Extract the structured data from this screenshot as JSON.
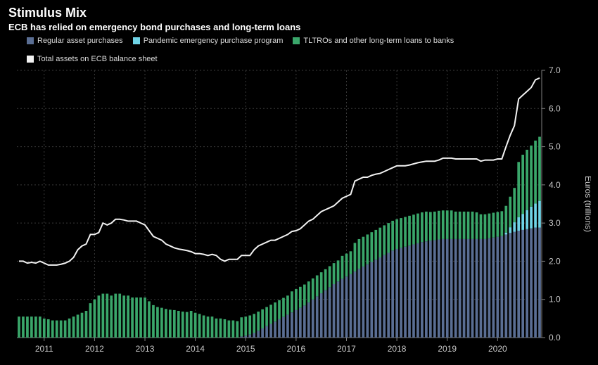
{
  "title": "Stimulus Mix",
  "subtitle": "ECB has relied on emergency bond purchases and long-term loans",
  "legend": {
    "s1": "Regular asset purchases",
    "s2": "Pandemic emergency purchase program",
    "s3": "TLTROs and other long-term loans to banks",
    "s4": "Total assets on ECB balance sheet"
  },
  "y_axis_label": "Euros (trillions)",
  "chart": {
    "type": "stacked_bar_with_line",
    "background_color": "#000000",
    "grid_color": "#3a3a3a",
    "axis_color": "#808080",
    "tick_color": "#c8c8c8",
    "ylim": [
      0,
      7.0
    ],
    "yticks": [
      0.0,
      1.0,
      2.0,
      3.0,
      4.0,
      5.0,
      6.0,
      7.0
    ],
    "xticks": [
      "2011",
      "2012",
      "2013",
      "2014",
      "2015",
      "2016",
      "2017",
      "2018",
      "2019",
      "2020"
    ],
    "series_colors": {
      "regular": "#5a6e93",
      "pandemic": "#6fd3e6",
      "tltro": "#3aa66a",
      "total": "#f2f2f2"
    },
    "bar_width_ratio": 0.62,
    "title_fontsize": 18,
    "subtitle_fontsize": 13,
    "legend_fontsize": 11,
    "tick_fontsize": 12,
    "data": [
      {
        "t": "2010-07",
        "regular": 0.0,
        "pandemic": 0.0,
        "tltro": 0.55,
        "total": 2.0
      },
      {
        "t": "2010-08",
        "regular": 0.0,
        "pandemic": 0.0,
        "tltro": 0.55,
        "total": 2.0
      },
      {
        "t": "2010-09",
        "regular": 0.0,
        "pandemic": 0.0,
        "tltro": 0.55,
        "total": 1.95
      },
      {
        "t": "2010-10",
        "regular": 0.0,
        "pandemic": 0.0,
        "tltro": 0.55,
        "total": 1.97
      },
      {
        "t": "2010-11",
        "regular": 0.0,
        "pandemic": 0.0,
        "tltro": 0.55,
        "total": 1.95
      },
      {
        "t": "2010-12",
        "regular": 0.0,
        "pandemic": 0.0,
        "tltro": 0.55,
        "total": 2.0
      },
      {
        "t": "2011-01",
        "regular": 0.0,
        "pandemic": 0.0,
        "tltro": 0.5,
        "total": 1.95
      },
      {
        "t": "2011-02",
        "regular": 0.0,
        "pandemic": 0.0,
        "tltro": 0.48,
        "total": 1.9
      },
      {
        "t": "2011-03",
        "regular": 0.0,
        "pandemic": 0.0,
        "tltro": 0.45,
        "total": 1.9
      },
      {
        "t": "2011-04",
        "regular": 0.0,
        "pandemic": 0.0,
        "tltro": 0.45,
        "total": 1.9
      },
      {
        "t": "2011-05",
        "regular": 0.0,
        "pandemic": 0.0,
        "tltro": 0.45,
        "total": 1.92
      },
      {
        "t": "2011-06",
        "regular": 0.0,
        "pandemic": 0.0,
        "tltro": 0.45,
        "total": 1.95
      },
      {
        "t": "2011-07",
        "regular": 0.0,
        "pandemic": 0.0,
        "tltro": 0.5,
        "total": 2.0
      },
      {
        "t": "2011-08",
        "regular": 0.0,
        "pandemic": 0.0,
        "tltro": 0.55,
        "total": 2.1
      },
      {
        "t": "2011-09",
        "regular": 0.0,
        "pandemic": 0.0,
        "tltro": 0.6,
        "total": 2.3
      },
      {
        "t": "2011-10",
        "regular": 0.0,
        "pandemic": 0.0,
        "tltro": 0.65,
        "total": 2.4
      },
      {
        "t": "2011-11",
        "regular": 0.0,
        "pandemic": 0.0,
        "tltro": 0.7,
        "total": 2.45
      },
      {
        "t": "2011-12",
        "regular": 0.0,
        "pandemic": 0.0,
        "tltro": 0.9,
        "total": 2.7
      },
      {
        "t": "2012-01",
        "regular": 0.0,
        "pandemic": 0.0,
        "tltro": 1.0,
        "total": 2.7
      },
      {
        "t": "2012-02",
        "regular": 0.0,
        "pandemic": 0.0,
        "tltro": 1.1,
        "total": 2.75
      },
      {
        "t": "2012-03",
        "regular": 0.0,
        "pandemic": 0.0,
        "tltro": 1.15,
        "total": 3.0
      },
      {
        "t": "2012-04",
        "regular": 0.0,
        "pandemic": 0.0,
        "tltro": 1.15,
        "total": 2.95
      },
      {
        "t": "2012-05",
        "regular": 0.0,
        "pandemic": 0.0,
        "tltro": 1.1,
        "total": 3.0
      },
      {
        "t": "2012-06",
        "regular": 0.0,
        "pandemic": 0.0,
        "tltro": 1.15,
        "total": 3.1
      },
      {
        "t": "2012-07",
        "regular": 0.0,
        "pandemic": 0.0,
        "tltro": 1.15,
        "total": 3.1
      },
      {
        "t": "2012-08",
        "regular": 0.0,
        "pandemic": 0.0,
        "tltro": 1.1,
        "total": 3.08
      },
      {
        "t": "2012-09",
        "regular": 0.0,
        "pandemic": 0.0,
        "tltro": 1.1,
        "total": 3.05
      },
      {
        "t": "2012-10",
        "regular": 0.0,
        "pandemic": 0.0,
        "tltro": 1.05,
        "total": 3.05
      },
      {
        "t": "2012-11",
        "regular": 0.0,
        "pandemic": 0.0,
        "tltro": 1.05,
        "total": 3.05
      },
      {
        "t": "2012-12",
        "regular": 0.0,
        "pandemic": 0.0,
        "tltro": 1.05,
        "total": 3.0
      },
      {
        "t": "2013-01",
        "regular": 0.0,
        "pandemic": 0.0,
        "tltro": 1.05,
        "total": 2.95
      },
      {
        "t": "2013-02",
        "regular": 0.0,
        "pandemic": 0.0,
        "tltro": 0.95,
        "total": 2.8
      },
      {
        "t": "2013-03",
        "regular": 0.0,
        "pandemic": 0.0,
        "tltro": 0.85,
        "total": 2.65
      },
      {
        "t": "2013-04",
        "regular": 0.0,
        "pandemic": 0.0,
        "tltro": 0.8,
        "total": 2.6
      },
      {
        "t": "2013-05",
        "regular": 0.0,
        "pandemic": 0.0,
        "tltro": 0.78,
        "total": 2.55
      },
      {
        "t": "2013-06",
        "regular": 0.0,
        "pandemic": 0.0,
        "tltro": 0.75,
        "total": 2.45
      },
      {
        "t": "2013-07",
        "regular": 0.0,
        "pandemic": 0.0,
        "tltro": 0.73,
        "total": 2.4
      },
      {
        "t": "2013-08",
        "regular": 0.0,
        "pandemic": 0.0,
        "tltro": 0.72,
        "total": 2.35
      },
      {
        "t": "2013-09",
        "regular": 0.0,
        "pandemic": 0.0,
        "tltro": 0.7,
        "total": 2.32
      },
      {
        "t": "2013-10",
        "regular": 0.0,
        "pandemic": 0.0,
        "tltro": 0.68,
        "total": 2.3
      },
      {
        "t": "2013-11",
        "regular": 0.0,
        "pandemic": 0.0,
        "tltro": 0.67,
        "total": 2.28
      },
      {
        "t": "2013-12",
        "regular": 0.0,
        "pandemic": 0.0,
        "tltro": 0.7,
        "total": 2.25
      },
      {
        "t": "2014-01",
        "regular": 0.0,
        "pandemic": 0.0,
        "tltro": 0.65,
        "total": 2.2
      },
      {
        "t": "2014-02",
        "regular": 0.0,
        "pandemic": 0.0,
        "tltro": 0.62,
        "total": 2.2
      },
      {
        "t": "2014-03",
        "regular": 0.0,
        "pandemic": 0.0,
        "tltro": 0.58,
        "total": 2.18
      },
      {
        "t": "2014-04",
        "regular": 0.0,
        "pandemic": 0.0,
        "tltro": 0.55,
        "total": 2.15
      },
      {
        "t": "2014-05",
        "regular": 0.0,
        "pandemic": 0.0,
        "tltro": 0.55,
        "total": 2.18
      },
      {
        "t": "2014-06",
        "regular": 0.0,
        "pandemic": 0.0,
        "tltro": 0.5,
        "total": 2.15
      },
      {
        "t": "2014-07",
        "regular": 0.0,
        "pandemic": 0.0,
        "tltro": 0.5,
        "total": 2.05
      },
      {
        "t": "2014-08",
        "regular": 0.0,
        "pandemic": 0.0,
        "tltro": 0.48,
        "total": 2.0
      },
      {
        "t": "2014-09",
        "regular": 0.0,
        "pandemic": 0.0,
        "tltro": 0.45,
        "total": 2.05
      },
      {
        "t": "2014-10",
        "regular": 0.0,
        "pandemic": 0.0,
        "tltro": 0.45,
        "total": 2.05
      },
      {
        "t": "2014-11",
        "regular": 0.0,
        "pandemic": 0.0,
        "tltro": 0.43,
        "total": 2.05
      },
      {
        "t": "2014-12",
        "regular": 0.03,
        "pandemic": 0.0,
        "tltro": 0.5,
        "total": 2.15
      },
      {
        "t": "2015-01",
        "regular": 0.05,
        "pandemic": 0.0,
        "tltro": 0.5,
        "total": 2.15
      },
      {
        "t": "2015-02",
        "regular": 0.08,
        "pandemic": 0.0,
        "tltro": 0.5,
        "total": 2.15
      },
      {
        "t": "2015-03",
        "regular": 0.12,
        "pandemic": 0.0,
        "tltro": 0.5,
        "total": 2.3
      },
      {
        "t": "2015-04",
        "regular": 0.18,
        "pandemic": 0.0,
        "tltro": 0.5,
        "total": 2.4
      },
      {
        "t": "2015-05",
        "regular": 0.24,
        "pandemic": 0.0,
        "tltro": 0.5,
        "total": 2.45
      },
      {
        "t": "2015-06",
        "regular": 0.3,
        "pandemic": 0.0,
        "tltro": 0.5,
        "total": 2.5
      },
      {
        "t": "2015-07",
        "regular": 0.36,
        "pandemic": 0.0,
        "tltro": 0.5,
        "total": 2.55
      },
      {
        "t": "2015-08",
        "regular": 0.42,
        "pandemic": 0.0,
        "tltro": 0.5,
        "total": 2.55
      },
      {
        "t": "2015-09",
        "regular": 0.48,
        "pandemic": 0.0,
        "tltro": 0.5,
        "total": 2.6
      },
      {
        "t": "2015-10",
        "regular": 0.54,
        "pandemic": 0.0,
        "tltro": 0.5,
        "total": 2.65
      },
      {
        "t": "2015-11",
        "regular": 0.6,
        "pandemic": 0.0,
        "tltro": 0.5,
        "total": 2.7
      },
      {
        "t": "2015-12",
        "regular": 0.66,
        "pandemic": 0.0,
        "tltro": 0.55,
        "total": 2.78
      },
      {
        "t": "2016-01",
        "regular": 0.72,
        "pandemic": 0.0,
        "tltro": 0.55,
        "total": 2.8
      },
      {
        "t": "2016-02",
        "regular": 0.78,
        "pandemic": 0.0,
        "tltro": 0.55,
        "total": 2.85
      },
      {
        "t": "2016-03",
        "regular": 0.84,
        "pandemic": 0.0,
        "tltro": 0.55,
        "total": 2.95
      },
      {
        "t": "2016-04",
        "regular": 0.92,
        "pandemic": 0.0,
        "tltro": 0.55,
        "total": 3.05
      },
      {
        "t": "2016-05",
        "regular": 1.0,
        "pandemic": 0.0,
        "tltro": 0.55,
        "total": 3.1
      },
      {
        "t": "2016-06",
        "regular": 1.08,
        "pandemic": 0.0,
        "tltro": 0.55,
        "total": 3.2
      },
      {
        "t": "2016-07",
        "regular": 1.16,
        "pandemic": 0.0,
        "tltro": 0.55,
        "total": 3.3
      },
      {
        "t": "2016-08",
        "regular": 1.24,
        "pandemic": 0.0,
        "tltro": 0.55,
        "total": 3.35
      },
      {
        "t": "2016-09",
        "regular": 1.32,
        "pandemic": 0.0,
        "tltro": 0.55,
        "total": 3.4
      },
      {
        "t": "2016-10",
        "regular": 1.4,
        "pandemic": 0.0,
        "tltro": 0.55,
        "total": 3.45
      },
      {
        "t": "2016-11",
        "regular": 1.47,
        "pandemic": 0.0,
        "tltro": 0.55,
        "total": 3.55
      },
      {
        "t": "2016-12",
        "regular": 1.54,
        "pandemic": 0.0,
        "tltro": 0.6,
        "total": 3.65
      },
      {
        "t": "2017-01",
        "regular": 1.6,
        "pandemic": 0.0,
        "tltro": 0.6,
        "total": 3.7
      },
      {
        "t": "2017-02",
        "regular": 1.66,
        "pandemic": 0.0,
        "tltro": 0.6,
        "total": 3.75
      },
      {
        "t": "2017-03",
        "regular": 1.73,
        "pandemic": 0.0,
        "tltro": 0.75,
        "total": 4.1
      },
      {
        "t": "2017-04",
        "regular": 1.8,
        "pandemic": 0.0,
        "tltro": 0.78,
        "total": 4.15
      },
      {
        "t": "2017-05",
        "regular": 1.86,
        "pandemic": 0.0,
        "tltro": 0.78,
        "total": 4.2
      },
      {
        "t": "2017-06",
        "regular": 1.92,
        "pandemic": 0.0,
        "tltro": 0.78,
        "total": 4.2
      },
      {
        "t": "2017-07",
        "regular": 1.98,
        "pandemic": 0.0,
        "tltro": 0.78,
        "total": 4.25
      },
      {
        "t": "2017-08",
        "regular": 2.04,
        "pandemic": 0.0,
        "tltro": 0.78,
        "total": 4.28
      },
      {
        "t": "2017-09",
        "regular": 2.1,
        "pandemic": 0.0,
        "tltro": 0.78,
        "total": 4.3
      },
      {
        "t": "2017-10",
        "regular": 2.16,
        "pandemic": 0.0,
        "tltro": 0.78,
        "total": 4.35
      },
      {
        "t": "2017-11",
        "regular": 2.22,
        "pandemic": 0.0,
        "tltro": 0.78,
        "total": 4.4
      },
      {
        "t": "2017-12",
        "regular": 2.28,
        "pandemic": 0.0,
        "tltro": 0.78,
        "total": 4.45
      },
      {
        "t": "2018-01",
        "regular": 2.32,
        "pandemic": 0.0,
        "tltro": 0.78,
        "total": 4.5
      },
      {
        "t": "2018-02",
        "regular": 2.35,
        "pandemic": 0.0,
        "tltro": 0.78,
        "total": 4.5
      },
      {
        "t": "2018-03",
        "regular": 2.38,
        "pandemic": 0.0,
        "tltro": 0.78,
        "total": 4.5
      },
      {
        "t": "2018-04",
        "regular": 2.41,
        "pandemic": 0.0,
        "tltro": 0.78,
        "total": 4.52
      },
      {
        "t": "2018-05",
        "regular": 2.44,
        "pandemic": 0.0,
        "tltro": 0.78,
        "total": 4.55
      },
      {
        "t": "2018-06",
        "regular": 2.47,
        "pandemic": 0.0,
        "tltro": 0.78,
        "total": 4.58
      },
      {
        "t": "2018-07",
        "regular": 2.5,
        "pandemic": 0.0,
        "tltro": 0.78,
        "total": 4.6
      },
      {
        "t": "2018-08",
        "regular": 2.52,
        "pandemic": 0.0,
        "tltro": 0.78,
        "total": 4.62
      },
      {
        "t": "2018-09",
        "regular": 2.54,
        "pandemic": 0.0,
        "tltro": 0.75,
        "total": 4.62
      },
      {
        "t": "2018-10",
        "regular": 2.55,
        "pandemic": 0.0,
        "tltro": 0.75,
        "total": 4.62
      },
      {
        "t": "2018-11",
        "regular": 2.57,
        "pandemic": 0.0,
        "tltro": 0.75,
        "total": 4.65
      },
      {
        "t": "2018-12",
        "regular": 2.58,
        "pandemic": 0.0,
        "tltro": 0.75,
        "total": 4.7
      },
      {
        "t": "2019-01",
        "regular": 2.58,
        "pandemic": 0.0,
        "tltro": 0.75,
        "total": 4.7
      },
      {
        "t": "2019-02",
        "regular": 2.58,
        "pandemic": 0.0,
        "tltro": 0.75,
        "total": 4.7
      },
      {
        "t": "2019-03",
        "regular": 2.58,
        "pandemic": 0.0,
        "tltro": 0.72,
        "total": 4.68
      },
      {
        "t": "2019-04",
        "regular": 2.58,
        "pandemic": 0.0,
        "tltro": 0.72,
        "total": 4.68
      },
      {
        "t": "2019-05",
        "regular": 2.58,
        "pandemic": 0.0,
        "tltro": 0.72,
        "total": 4.68
      },
      {
        "t": "2019-06",
        "regular": 2.58,
        "pandemic": 0.0,
        "tltro": 0.72,
        "total": 4.68
      },
      {
        "t": "2019-07",
        "regular": 2.58,
        "pandemic": 0.0,
        "tltro": 0.72,
        "total": 4.68
      },
      {
        "t": "2019-08",
        "regular": 2.58,
        "pandemic": 0.0,
        "tltro": 0.7,
        "total": 4.68
      },
      {
        "t": "2019-09",
        "regular": 2.58,
        "pandemic": 0.0,
        "tltro": 0.65,
        "total": 4.62
      },
      {
        "t": "2019-10",
        "regular": 2.58,
        "pandemic": 0.0,
        "tltro": 0.65,
        "total": 4.65
      },
      {
        "t": "2019-11",
        "regular": 2.6,
        "pandemic": 0.0,
        "tltro": 0.65,
        "total": 4.65
      },
      {
        "t": "2019-12",
        "regular": 2.62,
        "pandemic": 0.0,
        "tltro": 0.65,
        "total": 4.65
      },
      {
        "t": "2020-01",
        "regular": 2.64,
        "pandemic": 0.0,
        "tltro": 0.65,
        "total": 4.68
      },
      {
        "t": "2020-02",
        "regular": 2.66,
        "pandemic": 0.0,
        "tltro": 0.65,
        "total": 4.68
      },
      {
        "t": "2020-03",
        "regular": 2.7,
        "pandemic": 0.05,
        "tltro": 0.7,
        "total": 5.0
      },
      {
        "t": "2020-04",
        "regular": 2.74,
        "pandemic": 0.15,
        "tltro": 0.8,
        "total": 5.3
      },
      {
        "t": "2020-05",
        "regular": 2.77,
        "pandemic": 0.25,
        "tltro": 0.9,
        "total": 5.55
      },
      {
        "t": "2020-06",
        "regular": 2.8,
        "pandemic": 0.35,
        "tltro": 1.45,
        "total": 6.25
      },
      {
        "t": "2020-07",
        "regular": 2.82,
        "pandemic": 0.42,
        "tltro": 1.55,
        "total": 6.35
      },
      {
        "t": "2020-08",
        "regular": 2.84,
        "pandemic": 0.5,
        "tltro": 1.58,
        "total": 6.45
      },
      {
        "t": "2020-09",
        "regular": 2.86,
        "pandemic": 0.57,
        "tltro": 1.6,
        "total": 6.55
      },
      {
        "t": "2020-10",
        "regular": 2.88,
        "pandemic": 0.63,
        "tltro": 1.65,
        "total": 6.75
      },
      {
        "t": "2020-11",
        "regular": 2.88,
        "pandemic": 0.7,
        "tltro": 1.68,
        "total": 6.8
      }
    ]
  }
}
